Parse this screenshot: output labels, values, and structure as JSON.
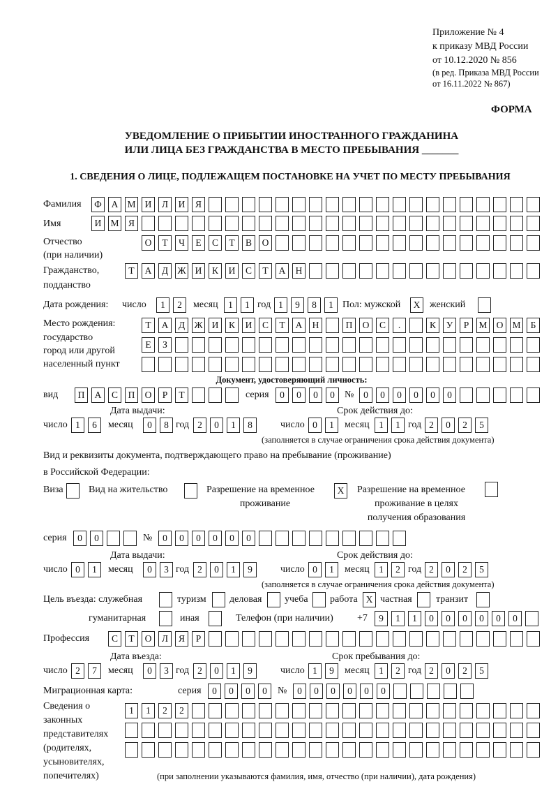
{
  "header": {
    "appendix": "Приложение № 4",
    "order": "к приказу МВД России",
    "order_date": "от 10.12.2020 № 856",
    "revision1": "(в ред. Приказа МВД России",
    "revision2": "от 16.11.2022 № 867)",
    "form": "ФОРМА",
    "title1": "УВЕДОМЛЕНИЕ О ПРИБЫТИИ ИНОСТРАННОГО ГРАЖДАНИНА",
    "title2": "ИЛИ ЛИЦА БЕЗ ГРАЖДАНСТВА В МЕСТО ПРЕБЫВАНИЯ _______",
    "section1": "1. СВЕДЕНИЯ О ЛИЦЕ, ПОДЛЕЖАЩЕМ ПОСТАНОВКЕ НА УЧЕТ ПО МЕСТУ ПРЕБЫВАНИЯ"
  },
  "labels": {
    "surname": "Фамилия",
    "name": "Имя",
    "patronymic": "Отчество",
    "patronymic_note": "(при наличии)",
    "citizenship1": "Гражданство,",
    "citizenship2": "подданство",
    "birth_date": "Дата рождения:",
    "day": "число",
    "month": "месяц",
    "year": "год",
    "sex_male": "Пол: мужской",
    "sex_female": "женский",
    "birthplace1": "Место рождения:",
    "birthplace2": "государство",
    "birthplace3": "город или другой",
    "birthplace4": "населенный пункт",
    "id_doc": "Документ, удостоверяющий личность:",
    "kind": "вид",
    "series": "серия",
    "number": "№",
    "issue_date": "Дата выдачи:",
    "valid_until": "Срок действия до:",
    "validity_note": "(заполняется в случае ограничения срока действия документа)",
    "residence_doc1": "Вид и реквизиты документа, подтверждающего право на пребывание (проживание)",
    "residence_doc2": "в Российской Федерации:",
    "visa": "Виза",
    "residence_permit": "Вид на жительство",
    "temp_permit1": "Разрешение на временное",
    "temp_permit2": "проживание",
    "edu_permit1": "Разрешение на временное",
    "edu_permit2": "проживание в целях",
    "edu_permit3": "получения образования",
    "purpose": "Цель въезда: служебная",
    "tourism": "туризм",
    "business": "деловая",
    "study": "учеба",
    "work": "работа",
    "private": "частная",
    "transit": "транзит",
    "humanitarian": "гуманитарная",
    "other": "иная",
    "phone": "Телефон (при наличии)",
    "phone_prefix": "+7",
    "profession": "Профессия",
    "entry_date": "Дата въезда:",
    "stay_until": "Срок пребывания до:",
    "migration_card": "Миграционная карта:",
    "reps1": "Сведения о",
    "reps2": "законных",
    "reps3": "представителях",
    "reps4": "(родителях,",
    "reps5": "усыновителях,",
    "reps6": "попечителях)",
    "reps_note": "(при заполнении указываются фамилия, имя, отчество (при наличии), дата рождения)"
  },
  "person": {
    "surname": "ФАМИЛИЯ",
    "name": "ИМЯ",
    "patronymic": "ОТЧЕСТВО",
    "citizenship": "ТАДЖИКИСТАН",
    "birth_day": "12",
    "birth_month": "11",
    "birth_year": "1981",
    "sex_male": "X",
    "sex_female": "",
    "birthplace_line1": "ТАДЖИКИСТАН ПОС. КУРМОМБ",
    "birthplace_line2": "ЕЗ",
    "birthplace_line3": ""
  },
  "id_document": {
    "kind": "ПАСПОРТ",
    "series": "0000",
    "number": "000000",
    "issue_day": "16",
    "issue_month": "08",
    "issue_year": "2018",
    "valid_day": "01",
    "valid_month": "11",
    "valid_year": "2025"
  },
  "residence_document": {
    "visa": "",
    "residence_permit": "",
    "temp_permit": "X",
    "edu_permit": "",
    "series": "00",
    "number": "000000",
    "issue_day": "01",
    "issue_month": "03",
    "issue_year": "2019",
    "valid_day": "01",
    "valid_month": "12",
    "valid_year": "2025"
  },
  "purpose": {
    "official": "",
    "tourism": "",
    "business": "",
    "study": "",
    "work": "X",
    "private": "",
    "transit": "",
    "humanitarian": "",
    "other": ""
  },
  "phone": "911000000",
  "profession": "СТОЛЯР",
  "entry": {
    "entry_day": "27",
    "entry_month": "03",
    "entry_year": "2019",
    "stay_day": "19",
    "stay_month": "12",
    "stay_year": "2025"
  },
  "migration_card": {
    "series": "0000",
    "number": "000000"
  },
  "representatives": {
    "line1": "1122",
    "line2": "",
    "line3": ""
  }
}
